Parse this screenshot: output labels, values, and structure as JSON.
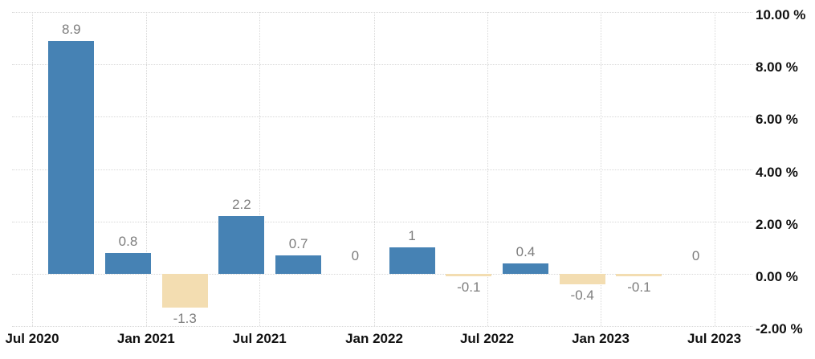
{
  "chart_data": {
    "type": "bar",
    "title": "",
    "unit": "%",
    "grid": "dotted",
    "legend": "none",
    "ylim": [
      -2,
      10
    ],
    "y_axis_side": "right",
    "x_tick_labels": [
      "Jul 2020",
      "Jan 2021",
      "Jul 2021",
      "Jan 2022",
      "Jul 2022",
      "Jan 2023",
      "Jul 2023"
    ],
    "y_ticks": [
      {
        "value": 10,
        "label": "10.00 %"
      },
      {
        "value": 8,
        "label": "8.00 %"
      },
      {
        "value": 6,
        "label": "6.00 %"
      },
      {
        "value": 4,
        "label": "4.00 %"
      },
      {
        "value": 2,
        "label": "2.00 %"
      },
      {
        "value": 0,
        "label": "0.00 %"
      },
      {
        "value": -2,
        "label": "-2.00 %"
      }
    ],
    "points": [
      {
        "value": 8.9,
        "label": "8.9"
      },
      {
        "value": 0.8,
        "label": "0.8"
      },
      {
        "value": -1.3,
        "label": "-1.3"
      },
      {
        "value": 2.2,
        "label": "2.2"
      },
      {
        "value": 0.7,
        "label": "0.7"
      },
      {
        "value": 0,
        "label": "0"
      },
      {
        "value": 1,
        "label": "1"
      },
      {
        "value": -0.1,
        "label": "-0.1"
      },
      {
        "value": 0.4,
        "label": "0.4"
      },
      {
        "value": -0.4,
        "label": "-0.4"
      },
      {
        "value": -0.1,
        "label": "-0.1"
      },
      {
        "value": 0,
        "label": "0"
      }
    ],
    "colors": {
      "positive_bar": "#4682b4",
      "negative_bar": "#f3ddb1",
      "value_label": "#7d7d7d",
      "axis_label": "#111111",
      "gridline": "#d8d8d8",
      "background": "#ffffff"
    }
  }
}
